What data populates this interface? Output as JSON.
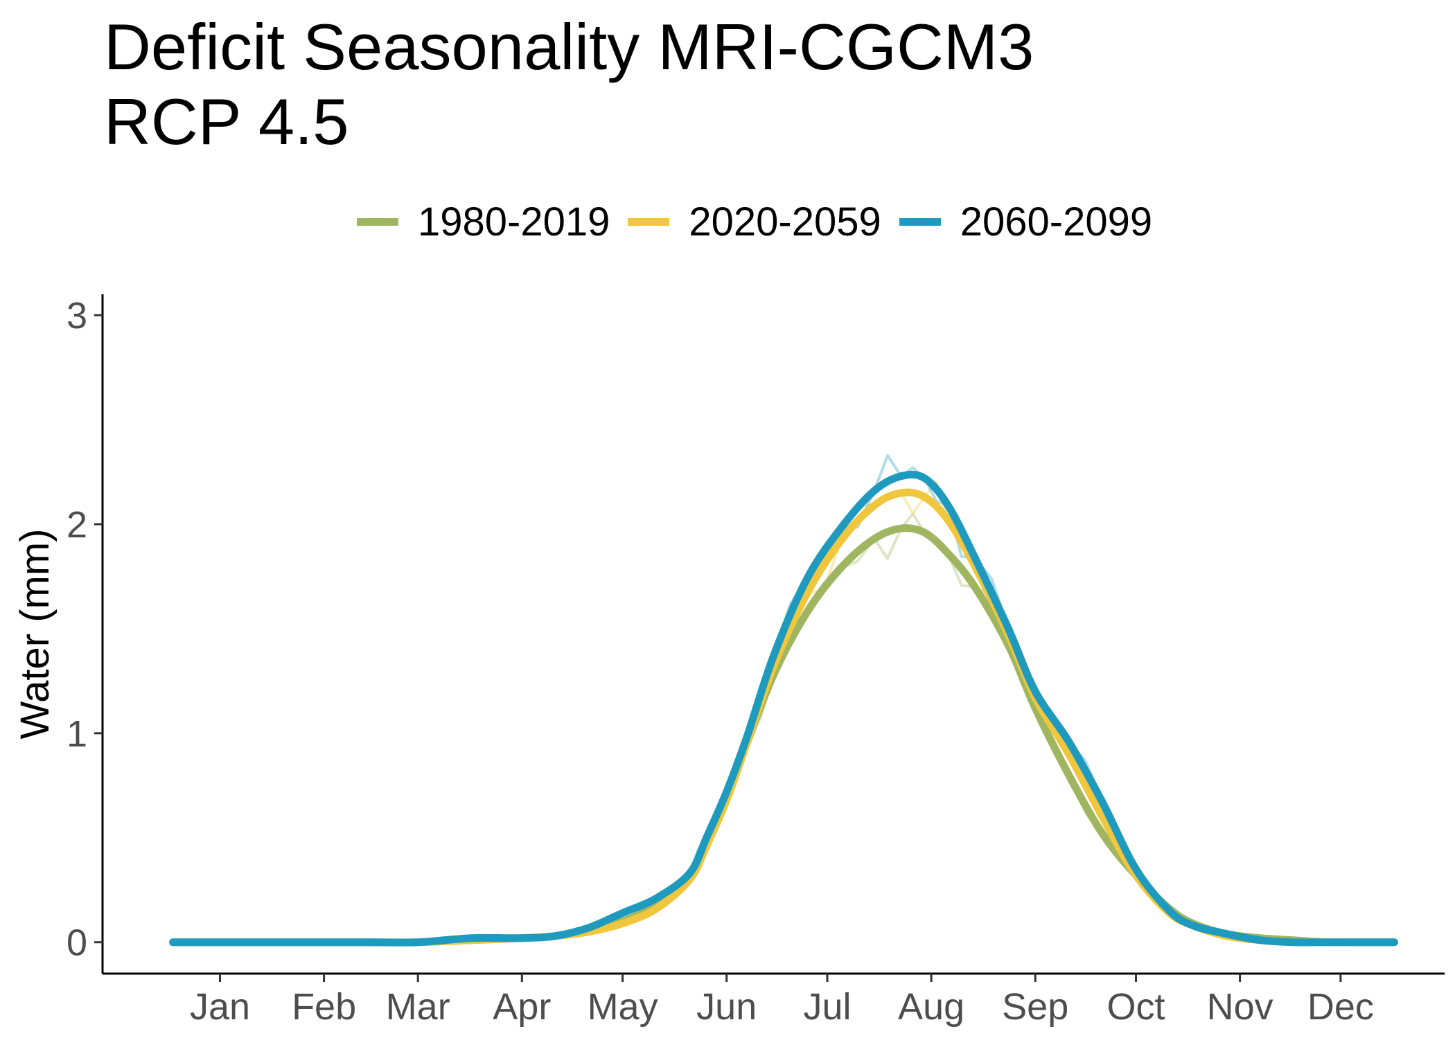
{
  "chart_data": {
    "type": "line",
    "title": [
      "Deficit Seasonality MRI-CGCM3",
      "RCP 4.5"
    ],
    "xlabel": "",
    "ylabel": "Water (mm)",
    "ylim": [
      -0.15,
      3.1
    ],
    "xlim": [
      -20,
      380
    ],
    "y_ticks": [
      0,
      1,
      2,
      3
    ],
    "x_ticks": [
      {
        "label": "Jan",
        "day": 15
      },
      {
        "label": "Feb",
        "day": 46
      },
      {
        "label": "Mar",
        "day": 74
      },
      {
        "label": "Apr",
        "day": 105
      },
      {
        "label": "May",
        "day": 135
      },
      {
        "label": "Jun",
        "day": 166
      },
      {
        "label": "Jul",
        "day": 196
      },
      {
        "label": "Aug",
        "day": 227
      },
      {
        "label": "Sep",
        "day": 258
      },
      {
        "label": "Oct",
        "day": 288
      },
      {
        "label": "Nov",
        "day": 319
      },
      {
        "label": "Dec",
        "day": 349
      }
    ],
    "grid": false,
    "legend_position": "top",
    "series": [
      {
        "name": "1980-2019",
        "color": "#9FB55F",
        "x": [
          1,
          30,
          60,
          74,
          90,
          105,
          115,
          125,
          135,
          145,
          155,
          160,
          166,
          172,
          180,
          190,
          200,
          210,
          218,
          225,
          232,
          240,
          250,
          258,
          268,
          278,
          288,
          298,
          305,
          315,
          325,
          335,
          345,
          355,
          365
        ],
        "y": [
          0,
          0,
          0,
          0,
          0.01,
          0.02,
          0.03,
          0.06,
          0.1,
          0.18,
          0.33,
          0.48,
          0.7,
          0.95,
          1.28,
          1.58,
          1.79,
          1.93,
          1.98,
          1.96,
          1.86,
          1.7,
          1.42,
          1.12,
          0.8,
          0.52,
          0.32,
          0.16,
          0.09,
          0.04,
          0.02,
          0.01,
          0,
          0,
          0
        ]
      },
      {
        "name": "2020-2059",
        "color": "#EFC63C",
        "x": [
          1,
          30,
          60,
          74,
          90,
          105,
          115,
          125,
          135,
          145,
          155,
          160,
          166,
          172,
          180,
          190,
          200,
          210,
          218,
          225,
          232,
          240,
          250,
          258,
          268,
          278,
          288,
          298,
          305,
          315,
          325,
          335,
          345,
          355,
          365
        ],
        "y": [
          0,
          0,
          0,
          0,
          0.01,
          0.02,
          0.03,
          0.05,
          0.09,
          0.16,
          0.3,
          0.46,
          0.68,
          0.95,
          1.32,
          1.67,
          1.92,
          2.09,
          2.15,
          2.13,
          2.02,
          1.8,
          1.47,
          1.17,
          0.9,
          0.6,
          0.32,
          0.14,
          0.08,
          0.03,
          0.01,
          0,
          0,
          0,
          0
        ]
      },
      {
        "name": "2060-2099",
        "color": "#1F9ABF",
        "x": [
          1,
          30,
          60,
          74,
          90,
          105,
          115,
          125,
          135,
          145,
          155,
          160,
          166,
          172,
          180,
          190,
          200,
          210,
          218,
          225,
          232,
          240,
          250,
          258,
          268,
          278,
          288,
          298,
          305,
          315,
          325,
          335,
          345,
          355,
          365
        ],
        "y": [
          0,
          0,
          0,
          0,
          0.02,
          0.02,
          0.03,
          0.07,
          0.14,
          0.21,
          0.33,
          0.5,
          0.72,
          0.98,
          1.37,
          1.74,
          1.98,
          2.16,
          2.23,
          2.22,
          2.09,
          1.84,
          1.5,
          1.2,
          0.96,
          0.67,
          0.35,
          0.15,
          0.08,
          0.04,
          0.01,
          0,
          0,
          0,
          0
        ]
      }
    ]
  }
}
